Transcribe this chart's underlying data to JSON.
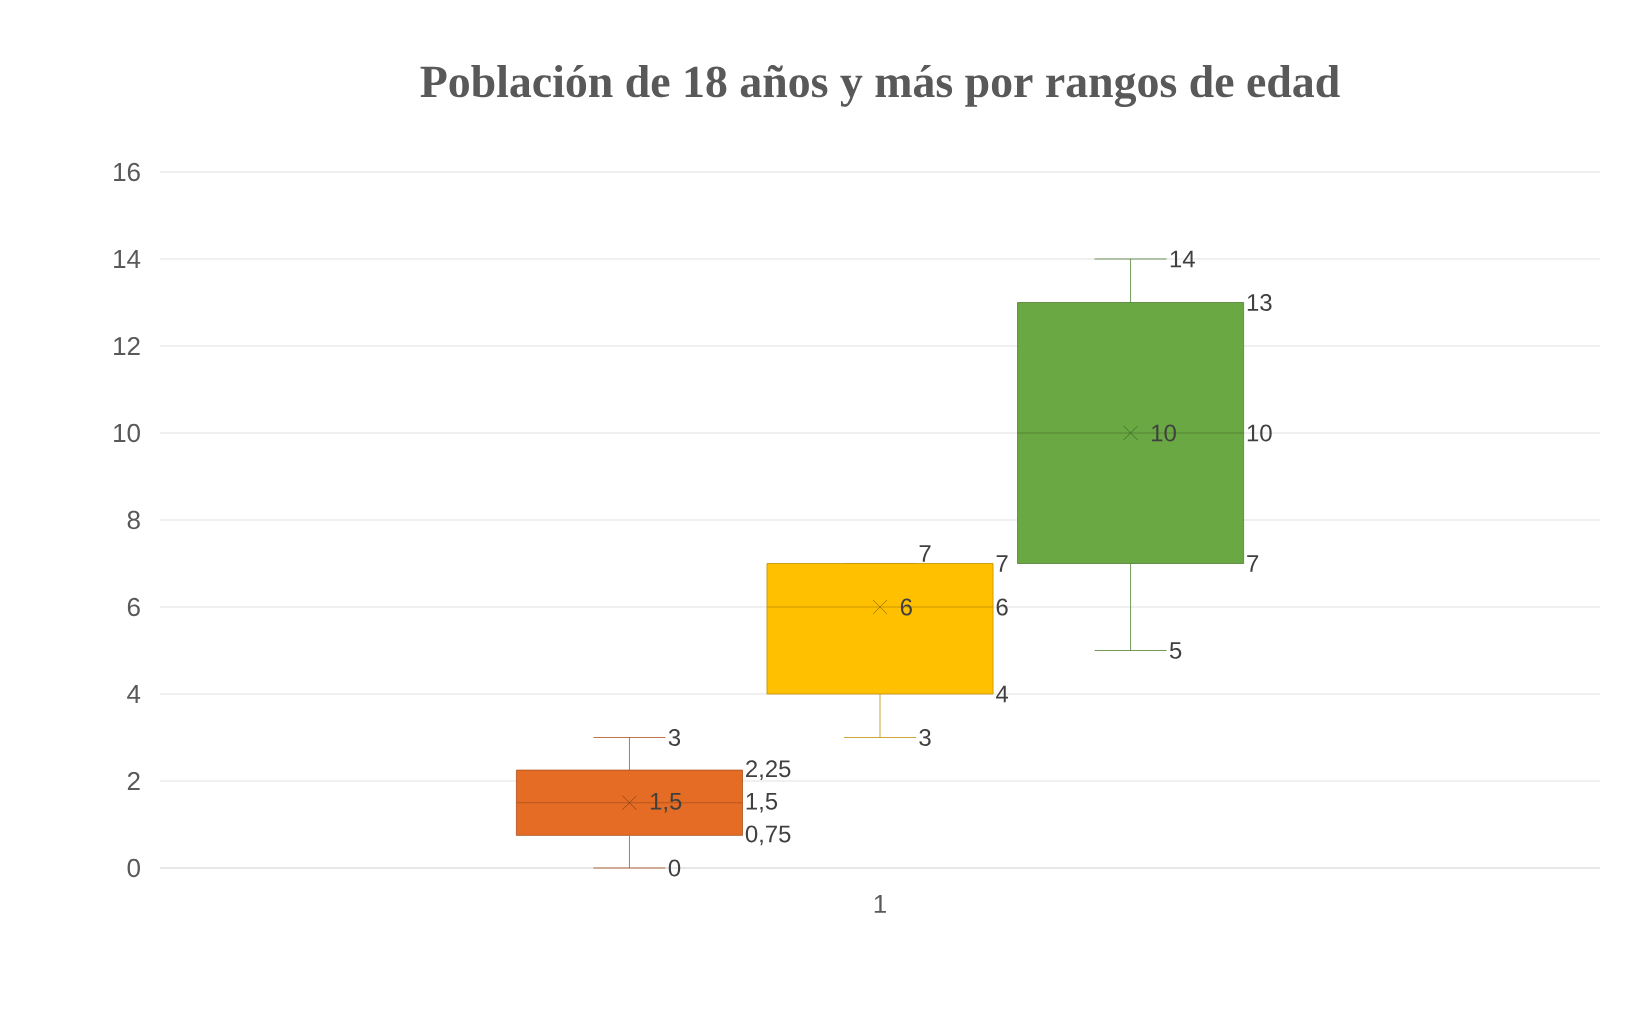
{
  "chart_data": {
    "type": "box",
    "title": "Población de 18 años y más por rangos de edad",
    "categories": [
      "1"
    ],
    "series": [
      {
        "color": "#e46c25",
        "boxes": [
          {
            "low": 0,
            "q1": 0.75,
            "median": 1.5,
            "q3": 2.25,
            "high": 3,
            "mean": 1.5
          }
        ]
      },
      {
        "color": "#ffc000",
        "boxes": [
          {
            "low": 3,
            "q1": 4,
            "median": 6,
            "q3": 7,
            "high": 7,
            "mean": 6
          }
        ]
      },
      {
        "color": "#6aa843",
        "boxes": [
          {
            "low": 5,
            "q1": 7,
            "median": 10,
            "q3": 13,
            "high": 14,
            "mean": 10
          }
        ]
      }
    ],
    "ylim": [
      0,
      16
    ],
    "yticks": [
      0,
      2,
      4,
      6,
      8,
      10,
      12,
      14,
      16
    ],
    "grid": "y",
    "marker": "cross",
    "annotations": [
      "0",
      "0,75",
      "1,5",
      "2,25",
      "3",
      "1,5",
      "3",
      "4",
      "6",
      "7",
      "7",
      "6",
      "5",
      "7",
      "10",
      "13",
      "14",
      "10"
    ]
  }
}
